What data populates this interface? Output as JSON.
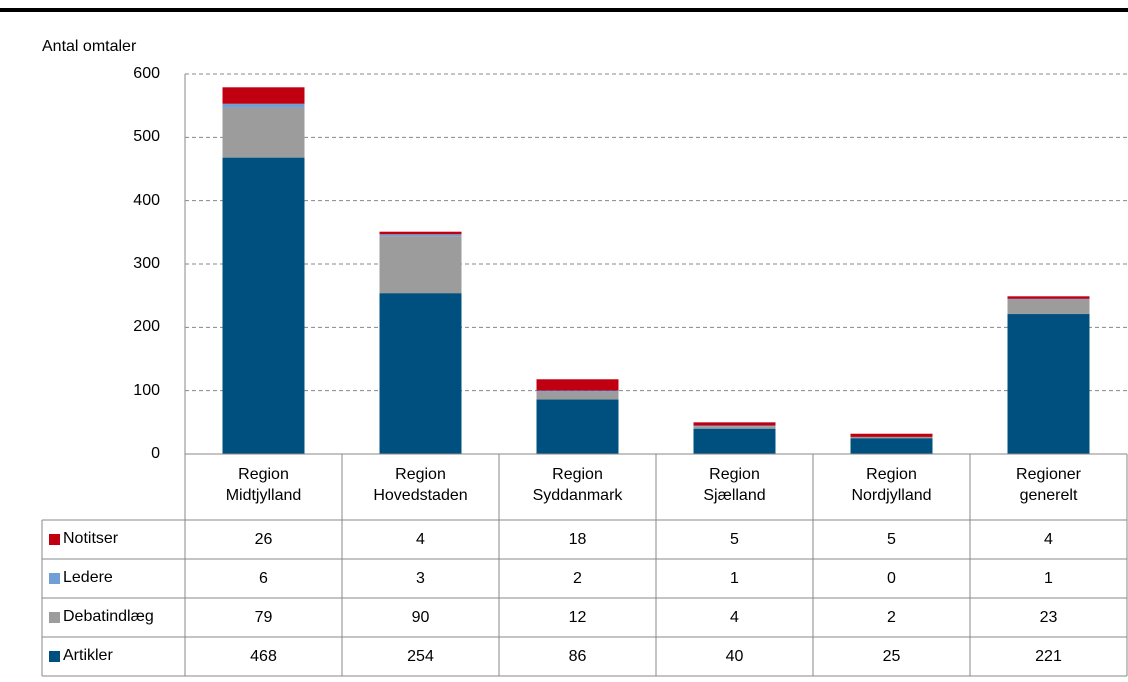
{
  "chart_data": {
    "type": "stacked-bar",
    "y_label": "Antal omtaler",
    "categories": [
      "Region\nMidtjylland",
      "Region\nHovedstaden",
      "Region\nSyddanmark",
      "Region\nSjælland",
      "Region\nNordjylland",
      "Regioner\ngenerelt"
    ],
    "series": [
      {
        "name": "Notitser",
        "color": "#c00010",
        "values": [
          26,
          4,
          18,
          5,
          5,
          4
        ]
      },
      {
        "name": "Ledere",
        "color": "#6f9fd4",
        "values": [
          6,
          3,
          2,
          1,
          0,
          1
        ]
      },
      {
        "name": "Debatindlæg",
        "color": "#9c9c9c",
        "values": [
          79,
          90,
          12,
          4,
          2,
          23
        ]
      },
      {
        "name": "Artikler",
        "color": "#00507f",
        "values": [
          468,
          254,
          86,
          40,
          25,
          221
        ]
      }
    ],
    "ylim": [
      0,
      600
    ],
    "yticks": [
      0,
      100,
      200,
      300,
      400,
      500,
      600
    ],
    "grid": true
  }
}
